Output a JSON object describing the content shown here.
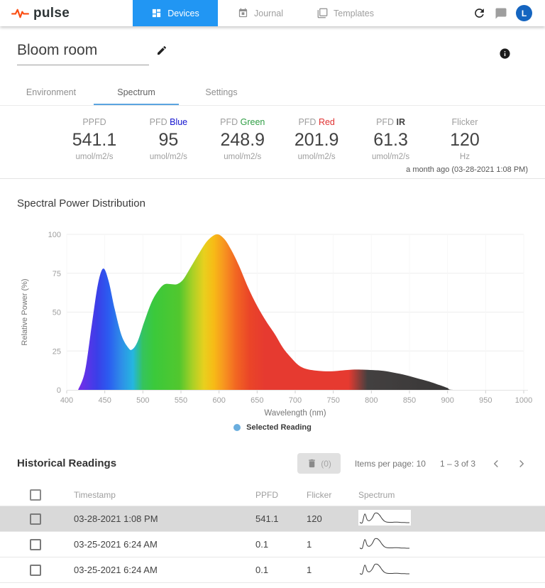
{
  "nav": {
    "logo_text": "pulse",
    "accent_color": "#2196f3",
    "logo_color": "#fb4e12",
    "tabs": [
      {
        "label": "Devices",
        "icon": "grid-icon",
        "active": true
      },
      {
        "label": "Journal",
        "icon": "calendar-icon",
        "active": false
      },
      {
        "label": "Templates",
        "icon": "templates-icon",
        "active": false
      }
    ],
    "avatar_initial": "L"
  },
  "device": {
    "title": "Bloom room",
    "tabs": [
      "Environment",
      "Spectrum",
      "Settings"
    ],
    "active_tab": "Spectrum",
    "reading_time": "a month ago (03-28-2021 1:08 PM)"
  },
  "stats": {
    "items": [
      {
        "label": "PPFD",
        "value": "541.1",
        "unit": "umol/m2/s"
      },
      {
        "label": "PFD",
        "accent": "Blue",
        "accent_color": "#1212cf",
        "value": "95",
        "unit": "umol/m2/s"
      },
      {
        "label": "PFD",
        "accent": "Green",
        "accent_color": "#2f9e44",
        "value": "248.9",
        "unit": "umol/m2/s"
      },
      {
        "label": "PFD",
        "accent": "Red",
        "accent_color": "#e03131",
        "value": "201.9",
        "unit": "umol/m2/s"
      },
      {
        "label": "PFD",
        "accent": "IR",
        "accent_color": "#424242",
        "accent_bold": true,
        "value": "61.3",
        "unit": "umol/m2/s"
      },
      {
        "label": "Flicker",
        "value": "120",
        "unit": "Hz"
      }
    ]
  },
  "chart_data": {
    "type": "area",
    "title": "Spectral Power Distribution",
    "xlabel": "Wavelength (nm)",
    "ylabel": "Relative Power (%)",
    "xlim": [
      400,
      1000
    ],
    "ylim": [
      0,
      100
    ],
    "x_ticks": [
      400,
      450,
      500,
      550,
      600,
      650,
      700,
      750,
      800,
      850,
      900,
      950,
      1000
    ],
    "y_ticks": [
      0,
      25,
      50,
      75,
      100
    ],
    "grid": true,
    "legend": {
      "label": "Selected Reading",
      "marker_color": "#6aaede",
      "position": "bottom"
    },
    "series": [
      {
        "name": "Selected Reading",
        "points": [
          [
            415,
            0
          ],
          [
            424,
            12
          ],
          [
            433,
            42
          ],
          [
            441,
            68
          ],
          [
            448,
            78
          ],
          [
            455,
            70
          ],
          [
            463,
            52
          ],
          [
            472,
            35
          ],
          [
            481,
            27
          ],
          [
            486,
            26
          ],
          [
            493,
            31
          ],
          [
            502,
            44
          ],
          [
            512,
            57
          ],
          [
            522,
            65
          ],
          [
            529,
            68
          ],
          [
            537,
            68
          ],
          [
            545,
            68
          ],
          [
            553,
            71
          ],
          [
            563,
            79
          ],
          [
            574,
            88
          ],
          [
            585,
            96
          ],
          [
            597,
            100
          ],
          [
            607,
            97
          ],
          [
            616,
            90
          ],
          [
            626,
            80
          ],
          [
            638,
            66
          ],
          [
            650,
            54
          ],
          [
            662,
            44
          ],
          [
            673,
            36
          ],
          [
            684,
            27
          ],
          [
            694,
            21
          ],
          [
            704,
            16
          ],
          [
            714,
            13.5
          ],
          [
            725,
            12.5
          ],
          [
            737,
            12
          ],
          [
            750,
            12
          ],
          [
            762,
            12.5
          ],
          [
            775,
            13
          ],
          [
            788,
            13
          ],
          [
            802,
            12.7
          ],
          [
            816,
            12.2
          ],
          [
            830,
            11
          ],
          [
            845,
            9.5
          ],
          [
            860,
            7.5
          ],
          [
            875,
            5.5
          ],
          [
            890,
            3
          ],
          [
            900,
            1.2
          ],
          [
            907,
            0
          ],
          [
            950,
            0
          ],
          [
            1000,
            0
          ]
        ]
      }
    ],
    "spectrum_gradient": [
      [
        412,
        "#7d2ae8"
      ],
      [
        440,
        "#3a3fe8"
      ],
      [
        455,
        "#2b5cf0"
      ],
      [
        472,
        "#2e8fe8"
      ],
      [
        487,
        "#25b6e0"
      ],
      [
        500,
        "#35c45c"
      ],
      [
        515,
        "#3bc93b"
      ],
      [
        548,
        "#52c72e"
      ],
      [
        565,
        "#a8d026"
      ],
      [
        580,
        "#e8d01e"
      ],
      [
        593,
        "#f7bb16"
      ],
      [
        607,
        "#f79420"
      ],
      [
        622,
        "#f26722"
      ],
      [
        640,
        "#ea4528"
      ],
      [
        660,
        "#e63a30"
      ],
      [
        770,
        "#e63a30"
      ],
      [
        795,
        "#434040"
      ],
      [
        1000,
        "#2f2f2f"
      ]
    ]
  },
  "history": {
    "title": "Historical Readings",
    "toolbar": {
      "delete_count_label": "(0)",
      "items_per_page": "Items per page: 10",
      "range": "1 – 3 of 3"
    },
    "columns": [
      "Timestamp",
      "PPFD",
      "Flicker",
      "Spectrum"
    ],
    "rows": [
      {
        "timestamp": "03-28-2021 1:08 PM",
        "ppfd": "541.1",
        "flicker": "120",
        "selected": true
      },
      {
        "timestamp": "03-25-2021 6:24 AM",
        "ppfd": "0.1",
        "flicker": "1",
        "selected": false
      },
      {
        "timestamp": "03-25-2021 6:24 AM",
        "ppfd": "0.1",
        "flicker": "1",
        "selected": false
      }
    ],
    "sparkline": [
      8,
      6,
      55,
      22,
      18,
      32,
      58,
      60,
      48,
      28,
      14,
      9,
      8,
      8,
      9,
      9,
      8,
      7,
      7,
      6,
      6
    ]
  }
}
